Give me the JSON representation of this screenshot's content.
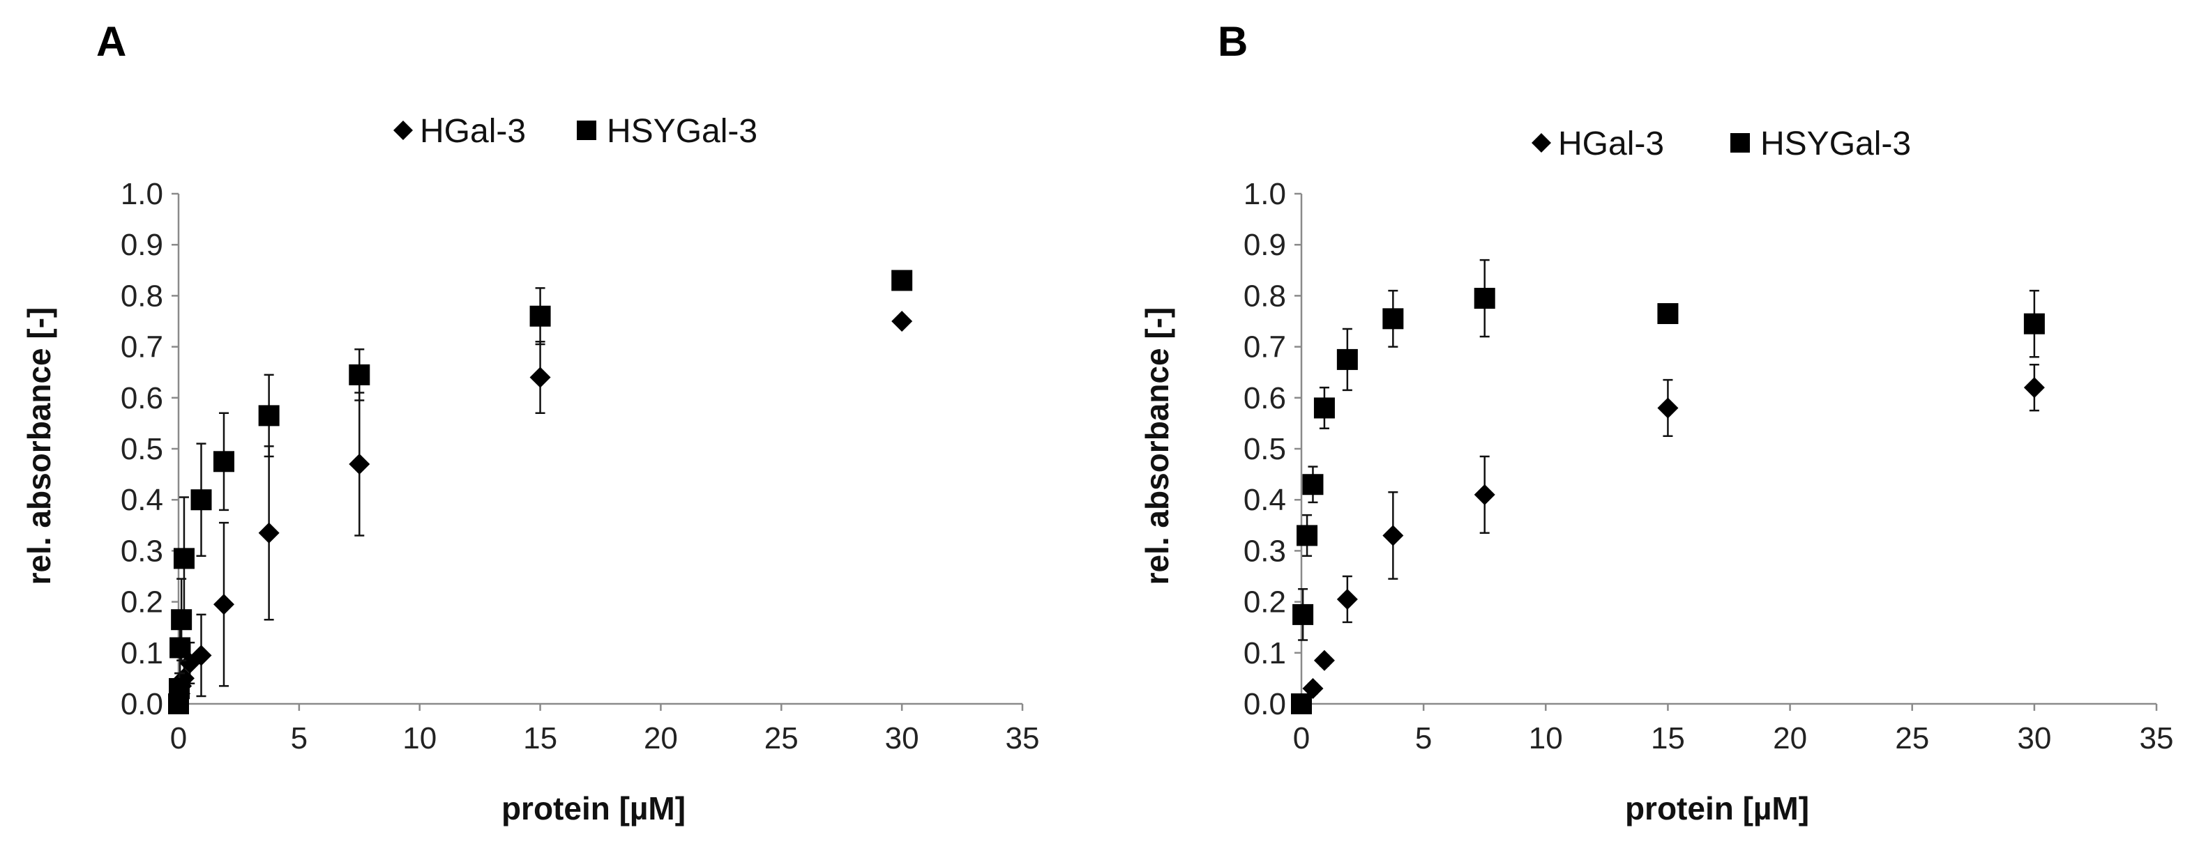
{
  "chart_data": [
    {
      "panel": "A",
      "type": "scatter",
      "xlabel": "protein   [µM]",
      "ylabel": "rel. absorbance   [-]",
      "xlim": [
        0,
        35
      ],
      "ylim": [
        0,
        1.0
      ],
      "x_ticks": [
        "0",
        "5",
        "10",
        "15",
        "20",
        "25",
        "30",
        "35"
      ],
      "y_ticks": [
        "0.0",
        "0.1",
        "0.2",
        "0.3",
        "0.4",
        "0.5",
        "0.6",
        "0.7",
        "0.8",
        "0.9",
        "1.0"
      ],
      "legend": [
        "HGal-3",
        "HSYGal-3"
      ],
      "series": [
        {
          "name": "HGal-3",
          "marker": "diamond",
          "x": [
            0.0,
            0.03,
            0.06,
            0.12,
            0.23,
            0.47,
            0.94,
            1.88,
            3.75,
            7.5,
            15,
            30
          ],
          "y": [
            0.0,
            0.01,
            0.02,
            0.035,
            0.05,
            0.08,
            0.095,
            0.195,
            0.335,
            0.47,
            0.64,
            0.75
          ],
          "err": [
            0.0,
            0.01,
            0.02,
            0.02,
            0.03,
            0.04,
            0.08,
            0.16,
            0.17,
            0.14,
            0.07,
            0.0
          ]
        },
        {
          "name": "HSYGal-3",
          "marker": "square",
          "x": [
            0.0,
            0.03,
            0.06,
            0.12,
            0.23,
            0.94,
            1.88,
            3.75,
            7.5,
            15,
            30
          ],
          "y": [
            0.0,
            0.03,
            0.11,
            0.165,
            0.285,
            0.4,
            0.475,
            0.565,
            0.645,
            0.76,
            0.83
          ],
          "err": [
            0.0,
            0.03,
            0.05,
            0.08,
            0.12,
            0.11,
            0.095,
            0.08,
            0.05,
            0.055,
            0.01
          ]
        }
      ]
    },
    {
      "panel": "B",
      "type": "scatter",
      "xlabel": "protein   [µM]",
      "ylabel": "rel. absorbance   [-]",
      "xlim": [
        0,
        35
      ],
      "ylim": [
        0,
        1.0
      ],
      "x_ticks": [
        "0",
        "5",
        "10",
        "15",
        "20",
        "25",
        "30",
        "35"
      ],
      "y_ticks": [
        "0.0",
        "0.1",
        "0.2",
        "0.3",
        "0.4",
        "0.5",
        "0.6",
        "0.7",
        "0.8",
        "0.9",
        "1.0"
      ],
      "legend": [
        "HGal-3",
        "HSYGal-3"
      ],
      "series": [
        {
          "name": "HGal-3",
          "marker": "diamond",
          "x": [
            0.0,
            0.47,
            0.94,
            1.88,
            3.75,
            7.5,
            15,
            30
          ],
          "y": [
            0.0,
            0.03,
            0.085,
            0.205,
            0.33,
            0.41,
            0.58,
            0.62
          ],
          "err": [
            0.0,
            0.01,
            0.01,
            0.045,
            0.085,
            0.075,
            0.055,
            0.045
          ]
        },
        {
          "name": "HSYGal-3",
          "marker": "square",
          "x": [
            0.0,
            0.06,
            0.23,
            0.47,
            0.94,
            1.88,
            3.75,
            7.5,
            15,
            30
          ],
          "y": [
            0.0,
            0.175,
            0.33,
            0.43,
            0.58,
            0.675,
            0.755,
            0.795,
            0.765,
            0.745
          ],
          "err": [
            0.0,
            0.05,
            0.04,
            0.035,
            0.04,
            0.06,
            0.055,
            0.075,
            0.01,
            0.065
          ]
        }
      ]
    }
  ]
}
